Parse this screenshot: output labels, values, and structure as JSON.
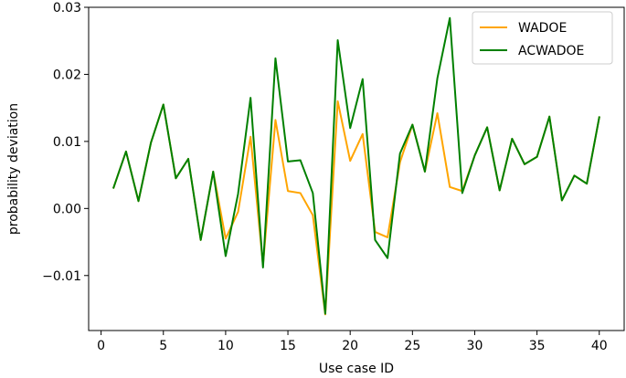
{
  "chart_data": {
    "type": "line",
    "title": "",
    "xlabel": "Use case ID",
    "ylabel": "probability deviation",
    "xlim": [
      -1.0,
      42.0
    ],
    "ylim": [
      -0.0182,
      0.03
    ],
    "xticks": [
      0,
      5,
      10,
      15,
      20,
      25,
      30,
      35,
      40
    ],
    "xtick_labels": [
      "0",
      "5",
      "10",
      "15",
      "20",
      "25",
      "30",
      "35",
      "40"
    ],
    "yticks": [
      -0.01,
      0.0,
      0.01,
      0.02,
      0.03
    ],
    "ytick_labels": [
      "−0.01",
      "0.00",
      "0.01",
      "0.02",
      "0.03"
    ],
    "grid": false,
    "legend_position": "top-right",
    "x": [
      1,
      2,
      3,
      4,
      5,
      6,
      7,
      8,
      9,
      10,
      11,
      12,
      13,
      14,
      15,
      16,
      17,
      18,
      19,
      20,
      21,
      22,
      23,
      24,
      25,
      26,
      27,
      28,
      29,
      30,
      31,
      32,
      33,
      34,
      35,
      36,
      37,
      38,
      39,
      40
    ],
    "series": [
      {
        "name": "WADOE",
        "color": "#ffa500",
        "values": [
          0.0031,
          0.0085,
          0.0011,
          0.0098,
          0.0155,
          0.0045,
          0.0074,
          -0.0047,
          0.0055,
          -0.0045,
          -0.0005,
          0.0107,
          -0.0084,
          0.0132,
          0.0026,
          0.0023,
          -0.001,
          -0.0158,
          0.016,
          0.0071,
          0.0111,
          -0.0035,
          -0.0043,
          0.0069,
          0.0125,
          0.0055,
          0.0142,
          0.0032,
          0.0026,
          0.0079,
          0.0121,
          0.0027,
          0.0104,
          0.0066,
          0.0077,
          0.0137,
          0.0012,
          0.0049,
          0.0037,
          0.0136
        ]
      },
      {
        "name": "ACWADOE",
        "color": "#008000",
        "values": [
          0.0031,
          0.0085,
          0.0011,
          0.0098,
          0.0155,
          0.0045,
          0.0074,
          -0.0047,
          0.0055,
          -0.0071,
          0.0022,
          0.0165,
          -0.0088,
          0.0224,
          0.007,
          0.0072,
          0.0023,
          -0.0157,
          0.0251,
          0.012,
          0.0193,
          -0.0047,
          -0.0074,
          0.0082,
          0.0125,
          0.0055,
          0.0194,
          0.0284,
          0.0023,
          0.0079,
          0.0121,
          0.0027,
          0.0104,
          0.0066,
          0.0077,
          0.0137,
          0.0012,
          0.0049,
          0.0037,
          0.0136
        ]
      }
    ]
  }
}
